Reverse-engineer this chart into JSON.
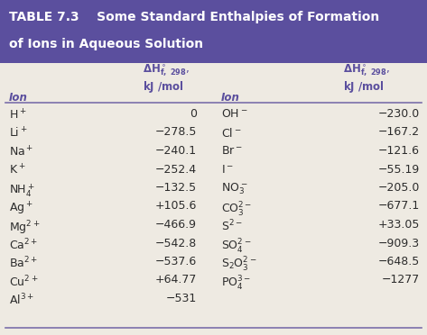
{
  "title_line1": "TABLE 7.3    Some Standard Enthalpies of Formation",
  "title_line2": "of Ions in Aqueous Solution",
  "title_bg": "#5B4F9E",
  "title_color": "#FFFFFF",
  "body_bg": "#EEEAE2",
  "header_color": "#5B4F9E",
  "separator_color": "#7B6FAA",
  "text_color": "#2C2C2C",
  "left_vals": [
    "0",
    "−278.5",
    "−240.1",
    "−252.4",
    "−132.5",
    "+105.6",
    "−466.9",
    "−542.8",
    "−537.6",
    "+64.77",
    "−531"
  ],
  "right_vals": [
    "−230.0",
    "−167.2",
    "−121.6",
    "−55.19",
    "−205.0",
    "−677.1",
    "+33.05",
    "−909.3",
    "−648.5",
    "−1277"
  ]
}
